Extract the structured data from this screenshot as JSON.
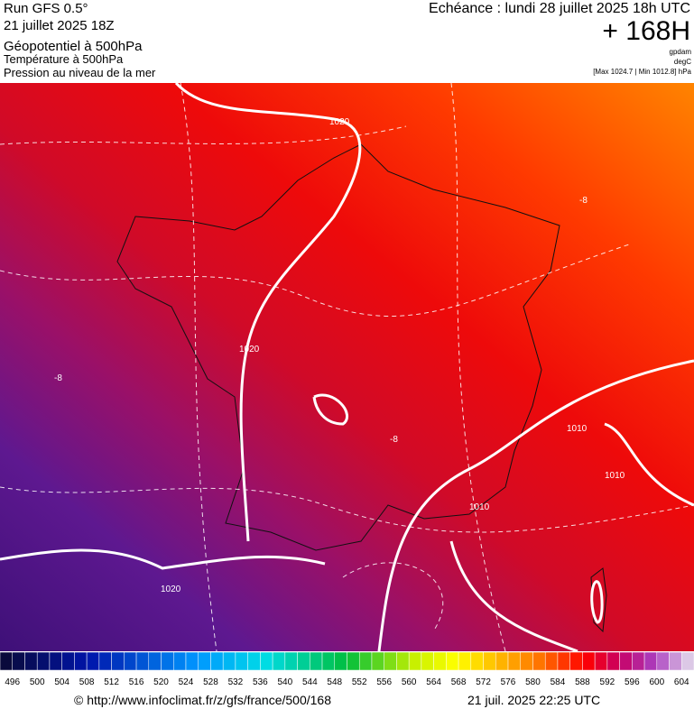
{
  "header": {
    "model": "Run GFS 0.5°",
    "run": "21 juillet 2025 18Z",
    "fields": [
      "Géopotentiel à 500hPa",
      "Température à 500hPa",
      "Pression au niveau de la mer"
    ],
    "valid": "Echéance : lundi 28 juillet 2025 18h UTC",
    "lead": "+ 168H",
    "units": [
      "gpdam",
      "degC"
    ],
    "range": "[Max 1024.7 | Min 1012.8] hPa"
  },
  "map": {
    "isobar_labels": [
      "1020",
      "1020",
      "1020",
      "1010",
      "1010",
      "1010"
    ],
    "temperature_labels": [
      "-8",
      "-8",
      "-8"
    ]
  },
  "colorbar": {
    "labels": [
      496,
      500,
      504,
      508,
      512,
      516,
      520,
      524,
      528,
      532,
      536,
      540,
      544,
      548,
      552,
      556,
      560,
      564,
      568,
      572,
      576,
      580,
      584,
      588,
      592,
      596,
      600,
      604
    ]
  },
  "footer": {
    "url": "© http://www.infoclimat.fr/z/gfs/france/500/168",
    "timestamp": "21 juil. 2025 22:25 UTC"
  }
}
